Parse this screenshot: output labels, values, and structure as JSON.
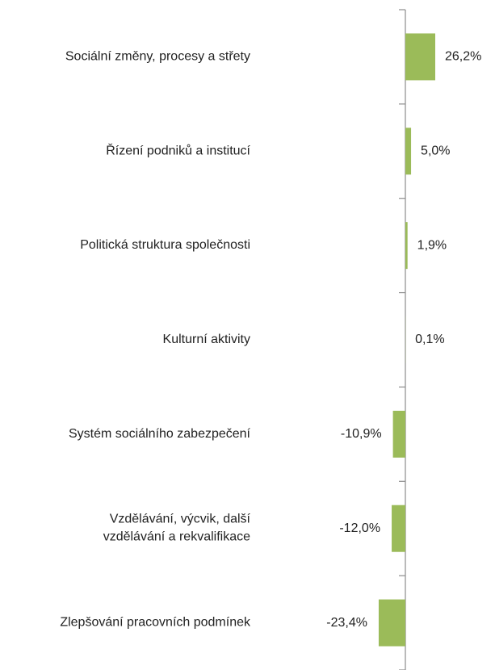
{
  "chart_data": {
    "type": "bar",
    "orientation": "horizontal",
    "categories": [
      "Sociální změny, procesy a střety",
      "Řízení podniků a institucí",
      "Politická struktura společnosti",
      "Kulturní aktivity",
      "Systém sociálního zabezpečení",
      "Vzdělávání, výcvik, další\nvzdělávání a rekvalifikace",
      "Zlepšování pracovních podmínek"
    ],
    "values": [
      26.2,
      5.0,
      1.9,
      0.1,
      -10.9,
      -12.0,
      -23.4
    ],
    "value_labels": [
      "26,2%",
      "5,0%",
      "1,9%",
      "0,1%",
      "-10,9%",
      "-12,0%",
      "-23,4%"
    ],
    "color": "#9bbb59"
  }
}
